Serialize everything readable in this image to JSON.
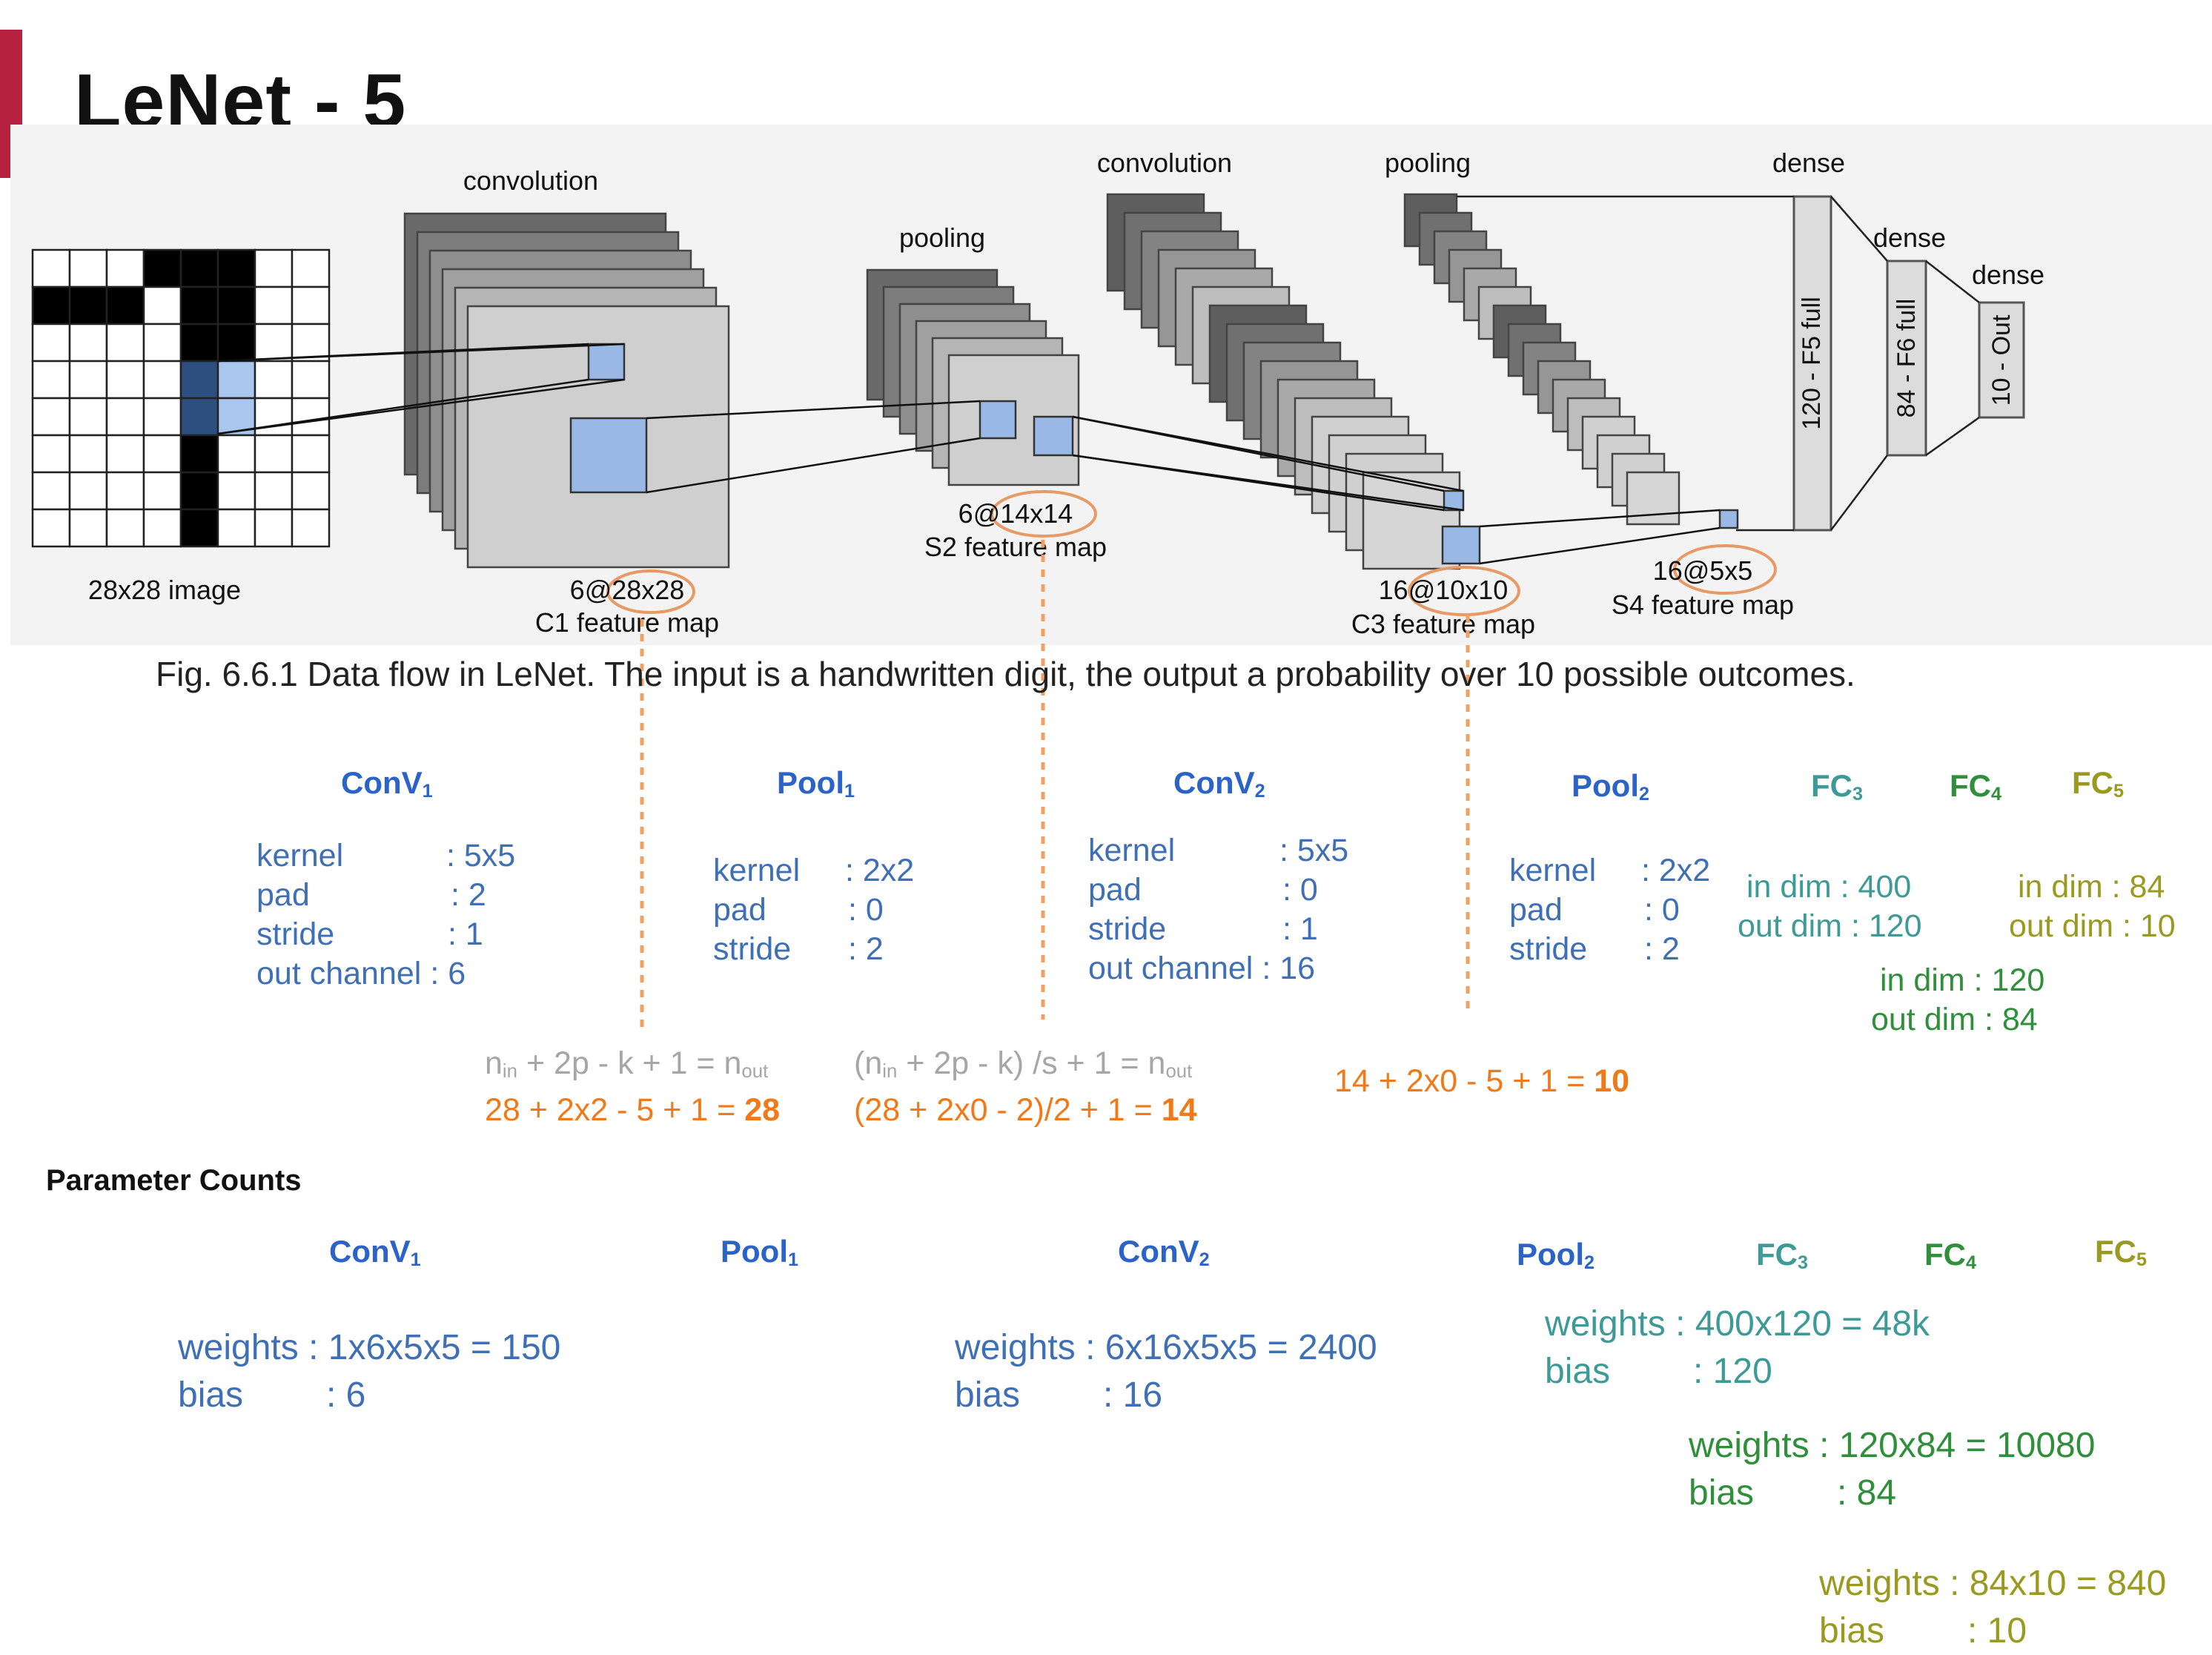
{
  "title": "LeNet - 5",
  "caption": "Fig. 6.6.1  Data flow in LeNet. The input is a handwritten digit, the output a probability over 10 possible outcomes.",
  "figure": {
    "image_label": "28x28 image",
    "convolution1_label": "convolution",
    "pooling1_label": "pooling",
    "convolution2_label": "convolution",
    "pooling2_label": "pooling",
    "dense1_label": "dense",
    "dense2_label": "dense",
    "dense3_label": "dense",
    "c1_size": "6@28x28",
    "c1_name": "C1 feature map",
    "s2_size": "6@14x14",
    "s2_name": "S2 feature map",
    "c3_size": "16@10x10",
    "c3_name": "C3 feature map",
    "s4_size": "16@5x5",
    "s4_name": "S4 feature map",
    "f5_label": "120 - F5 full",
    "f6_label": "84 - F6 full",
    "out_label": "10 - Out"
  },
  "layers": {
    "conv1": {
      "name": "ConV",
      "sub": "1",
      "kernel_label": "kernel",
      "kernel": ": 5x5",
      "pad_label": "pad",
      "pad": ": 2",
      "stride_label": "stride",
      "stride": ": 1",
      "out_label": "out channel",
      "out": ": 6"
    },
    "pool1": {
      "name": "Pool",
      "sub": "1",
      "kernel_label": "kernel",
      "kernel": ": 2x2",
      "pad_label": "pad",
      "pad": ": 0",
      "stride_label": "stride",
      "stride": ": 2"
    },
    "conv2": {
      "name": "ConV",
      "sub": "2",
      "kernel_label": "kernel",
      "kernel": ": 5x5",
      "pad_label": "pad",
      "pad": ": 0",
      "stride_label": "stride",
      "stride": ": 1",
      "out_label": "out channel",
      "out": ": 16"
    },
    "pool2": {
      "name": "Pool",
      "sub": "2",
      "kernel_label": "kernel",
      "kernel": ": 2x2",
      "pad_label": "pad",
      "pad": ": 0",
      "stride_label": "stride",
      "stride": ": 2"
    },
    "fc3": {
      "name": "FC",
      "sub": "3",
      "in": "in  dim : 400",
      "out": "out dim : 120"
    },
    "fc4": {
      "name": "FC",
      "sub": "4",
      "in": "in  dim : 120",
      "out": "out dim : 84"
    },
    "fc5": {
      "name": "FC",
      "sub": "5",
      "in": "in  dim : 84",
      "out": "out dim : 10"
    }
  },
  "formulas": {
    "conv_general_pre": "n",
    "conv_general": "+ 2p - k + 1 = n",
    "conv1_lhs": "28 + 2x2 - 5 + 1 = ",
    "conv1_rhs": "28",
    "pool_general_pre": "(n",
    "pool_general": "+ 2p - k) /s  + 1 = n",
    "pool1_lhs": "(28 + 2x0 - 2)/2 + 1 = ",
    "pool1_rhs": "14",
    "conv2_lhs": "14 + 2x0 - 5 + 1 = ",
    "conv2_rhs": "10",
    "sub_in": "in",
    "sub_out": "out"
  },
  "parameter_counts": {
    "heading": "Parameter Counts",
    "conv1": {
      "weights": "weights : 1x6x5x5 = 150",
      "bias_label": "bias",
      "bias": ": 6"
    },
    "conv2": {
      "weights": "weights : 6x16x5x5 = 2400",
      "bias_label": "bias",
      "bias": ": 16"
    },
    "fc3": {
      "weights": "weights : 400x120 = 48k",
      "bias_label": "bias",
      "bias": ": 120"
    },
    "fc4": {
      "weights": "weights : 120x84 = 10080",
      "bias_label": "bias",
      "bias": ": 84"
    },
    "fc5": {
      "weights": "weights : 84x10 = 840",
      "bias_label": "bias",
      "bias": ": 10"
    }
  },
  "colors": {
    "accent": "#b5213f",
    "conv_pool_header": "#2b63c8",
    "param_text": "#3f6fb5",
    "fc3": "#3e9a96",
    "fc4": "#2f8f3a",
    "fc5": "#9a9a20",
    "formula_gray": "#a6a6a6",
    "formula_orange": "#f07a1a"
  }
}
